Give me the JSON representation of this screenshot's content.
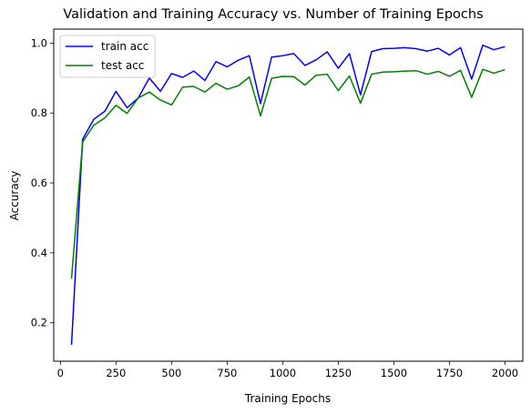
{
  "chart_data": {
    "type": "line",
    "title": "Validation and Training Accuracy vs. Number of Training Epochs",
    "xlabel": "Training Epochs",
    "ylabel": "Accuracy",
    "xlim": [
      -30,
      2080
    ],
    "ylim": [
      0.09,
      1.04
    ],
    "xticks": [
      0,
      250,
      500,
      750,
      1000,
      1250,
      1500,
      1750,
      2000
    ],
    "yticks": [
      0.2,
      0.4,
      0.6,
      0.8,
      1.0
    ],
    "xtick_labels": [
      "0",
      "250",
      "500",
      "750",
      "1000",
      "1250",
      "1500",
      "1750",
      "2000"
    ],
    "ytick_labels": [
      "0.2",
      "0.4",
      "0.6",
      "0.8",
      "1.0"
    ],
    "grid": false,
    "legend_position": "upper-left",
    "x": [
      50,
      100,
      150,
      200,
      250,
      300,
      350,
      400,
      450,
      500,
      550,
      600,
      650,
      700,
      750,
      800,
      850,
      900,
      950,
      1000,
      1050,
      1100,
      1150,
      1200,
      1250,
      1300,
      1350,
      1400,
      1450,
      1500,
      1550,
      1600,
      1650,
      1700,
      1750,
      1800,
      1850,
      1900,
      1950,
      2000
    ],
    "series": [
      {
        "name": "train acc",
        "color": "#0000ff",
        "values": [
          0.137,
          0.725,
          0.782,
          0.805,
          0.862,
          0.815,
          0.843,
          0.9,
          0.862,
          0.913,
          0.902,
          0.92,
          0.893,
          0.947,
          0.932,
          0.951,
          0.964,
          0.827,
          0.96,
          0.964,
          0.97,
          0.936,
          0.952,
          0.975,
          0.928,
          0.97,
          0.852,
          0.976,
          0.984,
          0.985,
          0.987,
          0.984,
          0.977,
          0.985,
          0.966,
          0.987,
          0.897,
          0.994,
          0.981,
          0.99
        ]
      },
      {
        "name": "test acc",
        "color": "#008000",
        "values": [
          0.326,
          0.717,
          0.765,
          0.786,
          0.822,
          0.799,
          0.843,
          0.86,
          0.837,
          0.823,
          0.874,
          0.876,
          0.86,
          0.885,
          0.868,
          0.878,
          0.903,
          0.792,
          0.899,
          0.905,
          0.904,
          0.88,
          0.908,
          0.911,
          0.864,
          0.906,
          0.828,
          0.911,
          0.917,
          0.918,
          0.92,
          0.921,
          0.911,
          0.919,
          0.905,
          0.922,
          0.845,
          0.925,
          0.914,
          0.924
        ]
      }
    ]
  }
}
